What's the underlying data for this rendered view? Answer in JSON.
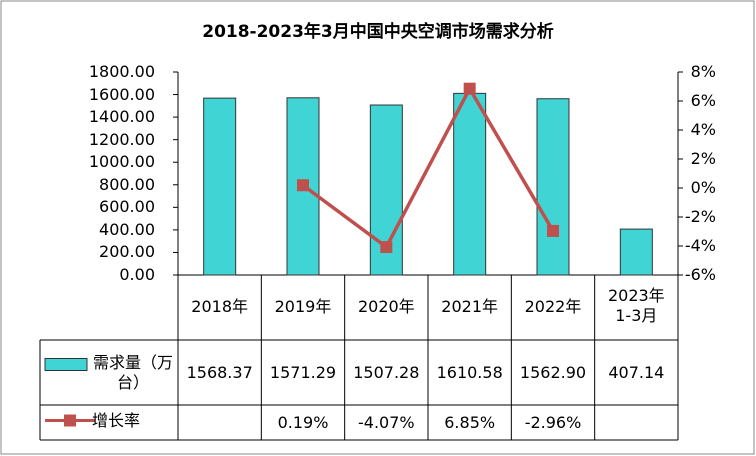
{
  "chart_data": {
    "type": "bar-line",
    "title": "2018-2023年3月中国中央空调市场需求分析",
    "categories": [
      "2018年",
      "2019年",
      "2020年",
      "2021年",
      "2022年",
      "2023年1-3月"
    ],
    "series": [
      {
        "name": "需求量（万台）",
        "type": "bar",
        "color": "#40d4d4",
        "values": [
          1568.37,
          1571.29,
          1507.28,
          1610.58,
          1562.9,
          407.14
        ],
        "value_labels": [
          "1568.37",
          "1571.29",
          "1507.28",
          "1610.58",
          "1562.90",
          "407.14"
        ]
      },
      {
        "name": "增长率",
        "type": "line",
        "axis": "y2",
        "color": "#c0504d",
        "values": [
          null,
          0.19,
          -4.07,
          6.85,
          -2.96,
          null
        ],
        "value_labels": [
          null,
          "0.19%",
          "-4.07%",
          "6.85%",
          "-2.96%",
          null
        ]
      }
    ],
    "ylim": [
      0,
      1800
    ],
    "yticks": [
      {
        "value": 0,
        "label": "0.00"
      },
      {
        "value": 200,
        "label": "200.00"
      },
      {
        "value": 400,
        "label": "400.00"
      },
      {
        "value": 600,
        "label": "600.00"
      },
      {
        "value": 800,
        "label": "800.00"
      },
      {
        "value": 1000,
        "label": "1000.00"
      },
      {
        "value": 1200,
        "label": "1200.00"
      },
      {
        "value": 1400,
        "label": "1400.00"
      },
      {
        "value": 1600,
        "label": "1600.00"
      },
      {
        "value": 1800,
        "label": "1800.00"
      }
    ],
    "y2lim": [
      -6,
      8
    ],
    "y2ticks": [
      {
        "value": -6,
        "label": "-6%"
      },
      {
        "value": -4,
        "label": "-4%"
      },
      {
        "value": -2,
        "label": "-2%"
      },
      {
        "value": 0,
        "label": "0%"
      },
      {
        "value": 2,
        "label": "2%"
      },
      {
        "value": 4,
        "label": "4%"
      },
      {
        "value": 6,
        "label": "6%"
      },
      {
        "value": 8,
        "label": "8%"
      }
    ]
  }
}
